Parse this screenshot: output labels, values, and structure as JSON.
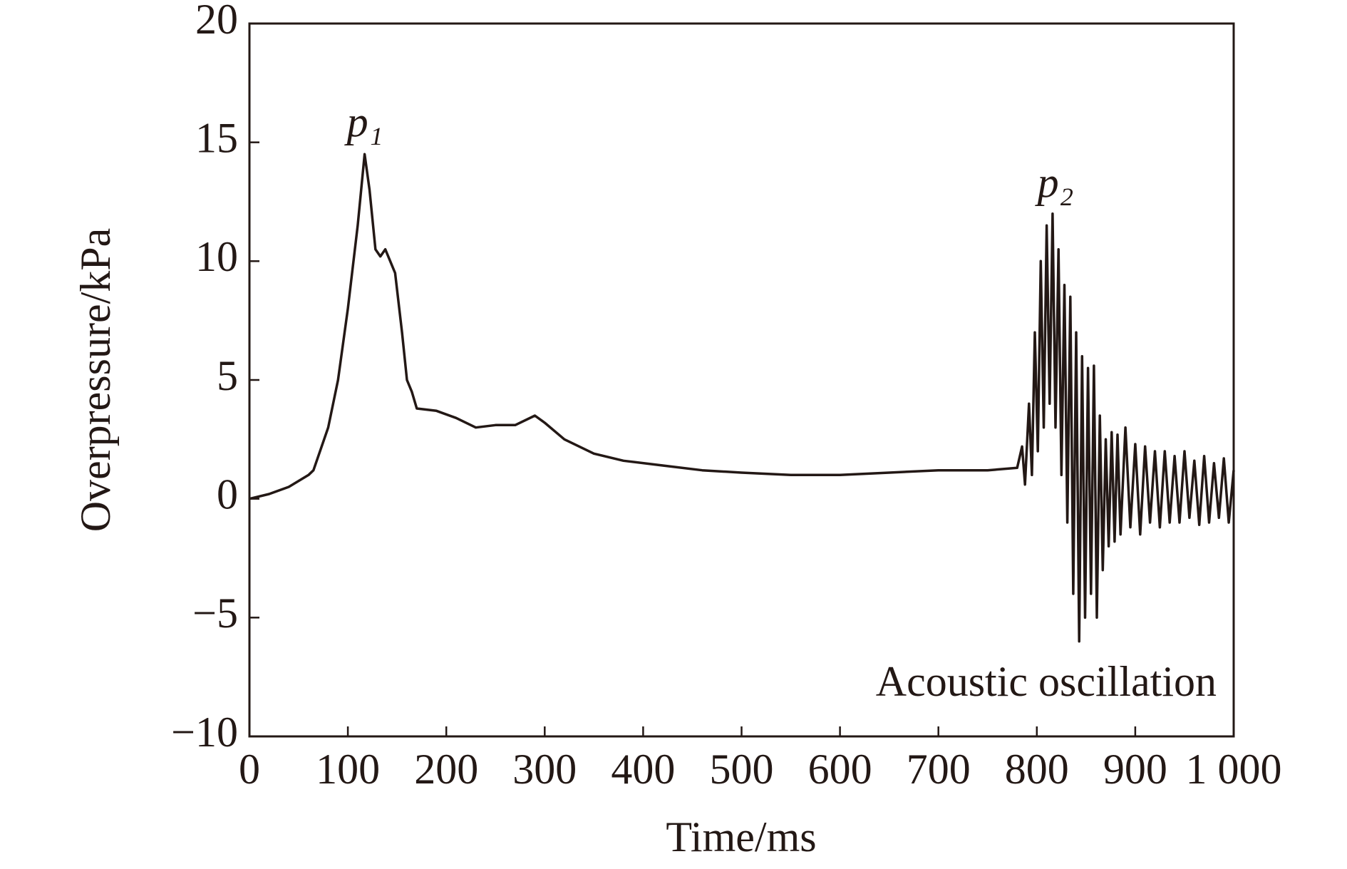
{
  "chart_data": {
    "type": "line",
    "x_label": "Time/ms",
    "y_label": "Overpressure/kPa",
    "annotations": [
      "p₁",
      "p₂",
      "Acoustic oscillation"
    ],
    "color": "#231815",
    "xlim": [
      0,
      1000
    ],
    "xticks": [
      0,
      100,
      200,
      300,
      400,
      500,
      600,
      700,
      800,
      900,
      {
        "value": 1000,
        "label": "1 000"
      }
    ],
    "ylim": [
      -10,
      20
    ],
    "yticks": [
      {
        "value": -10,
        "label": "−10"
      },
      {
        "value": -5,
        "label": "−5"
      },
      0,
      5,
      10,
      15,
      20
    ],
    "x": [
      0,
      20,
      40,
      60,
      65,
      80,
      90,
      100,
      110,
      117,
      122,
      128,
      133,
      138,
      143,
      148,
      155,
      160,
      165,
      170,
      190,
      210,
      230,
      250,
      270,
      290,
      300,
      320,
      350,
      380,
      420,
      460,
      500,
      550,
      600,
      650,
      700,
      750,
      780,
      785,
      788,
      792,
      795,
      798,
      801,
      804,
      807,
      810,
      813,
      816,
      819,
      822,
      825,
      828,
      831,
      834,
      837,
      840,
      843,
      846,
      849,
      852,
      855,
      858,
      861,
      864,
      867,
      870,
      873,
      876,
      879,
      882,
      885,
      890,
      895,
      900,
      905,
      910,
      915,
      920,
      925,
      930,
      935,
      940,
      945,
      950,
      955,
      960,
      965,
      970,
      975,
      980,
      985,
      990,
      995,
      1000
    ],
    "values": [
      0,
      0.2,
      0.5,
      1.0,
      1.2,
      3,
      5,
      8,
      11.5,
      14.5,
      13,
      10.5,
      10.2,
      10.5,
      10,
      9.5,
      7,
      5,
      4.5,
      3.8,
      3.7,
      3.4,
      3,
      3.1,
      3.1,
      3.5,
      3.2,
      2.5,
      1.9,
      1.6,
      1.4,
      1.2,
      1.1,
      1.0,
      1.0,
      1.1,
      1.2,
      1.2,
      1.3,
      2.2,
      0.6,
      4,
      1,
      7,
      2,
      10,
      3,
      11.5,
      4,
      12,
      3,
      10.5,
      1,
      9,
      -1,
      8.5,
      -4,
      7,
      -6,
      6,
      -5,
      5.5,
      -4,
      5.6,
      -5,
      3.5,
      -3,
      2.5,
      -2,
      2.8,
      -1.8,
      2.7,
      -1.5,
      3,
      -1.2,
      2.3,
      -1.5,
      2.2,
      -1,
      2,
      -1.2,
      2,
      -1,
      1.8,
      -1,
      2,
      -0.8,
      1.6,
      -1.1,
      1.8,
      -1,
      1.5,
      -0.8,
      1.7,
      -1,
      1.2
    ]
  }
}
